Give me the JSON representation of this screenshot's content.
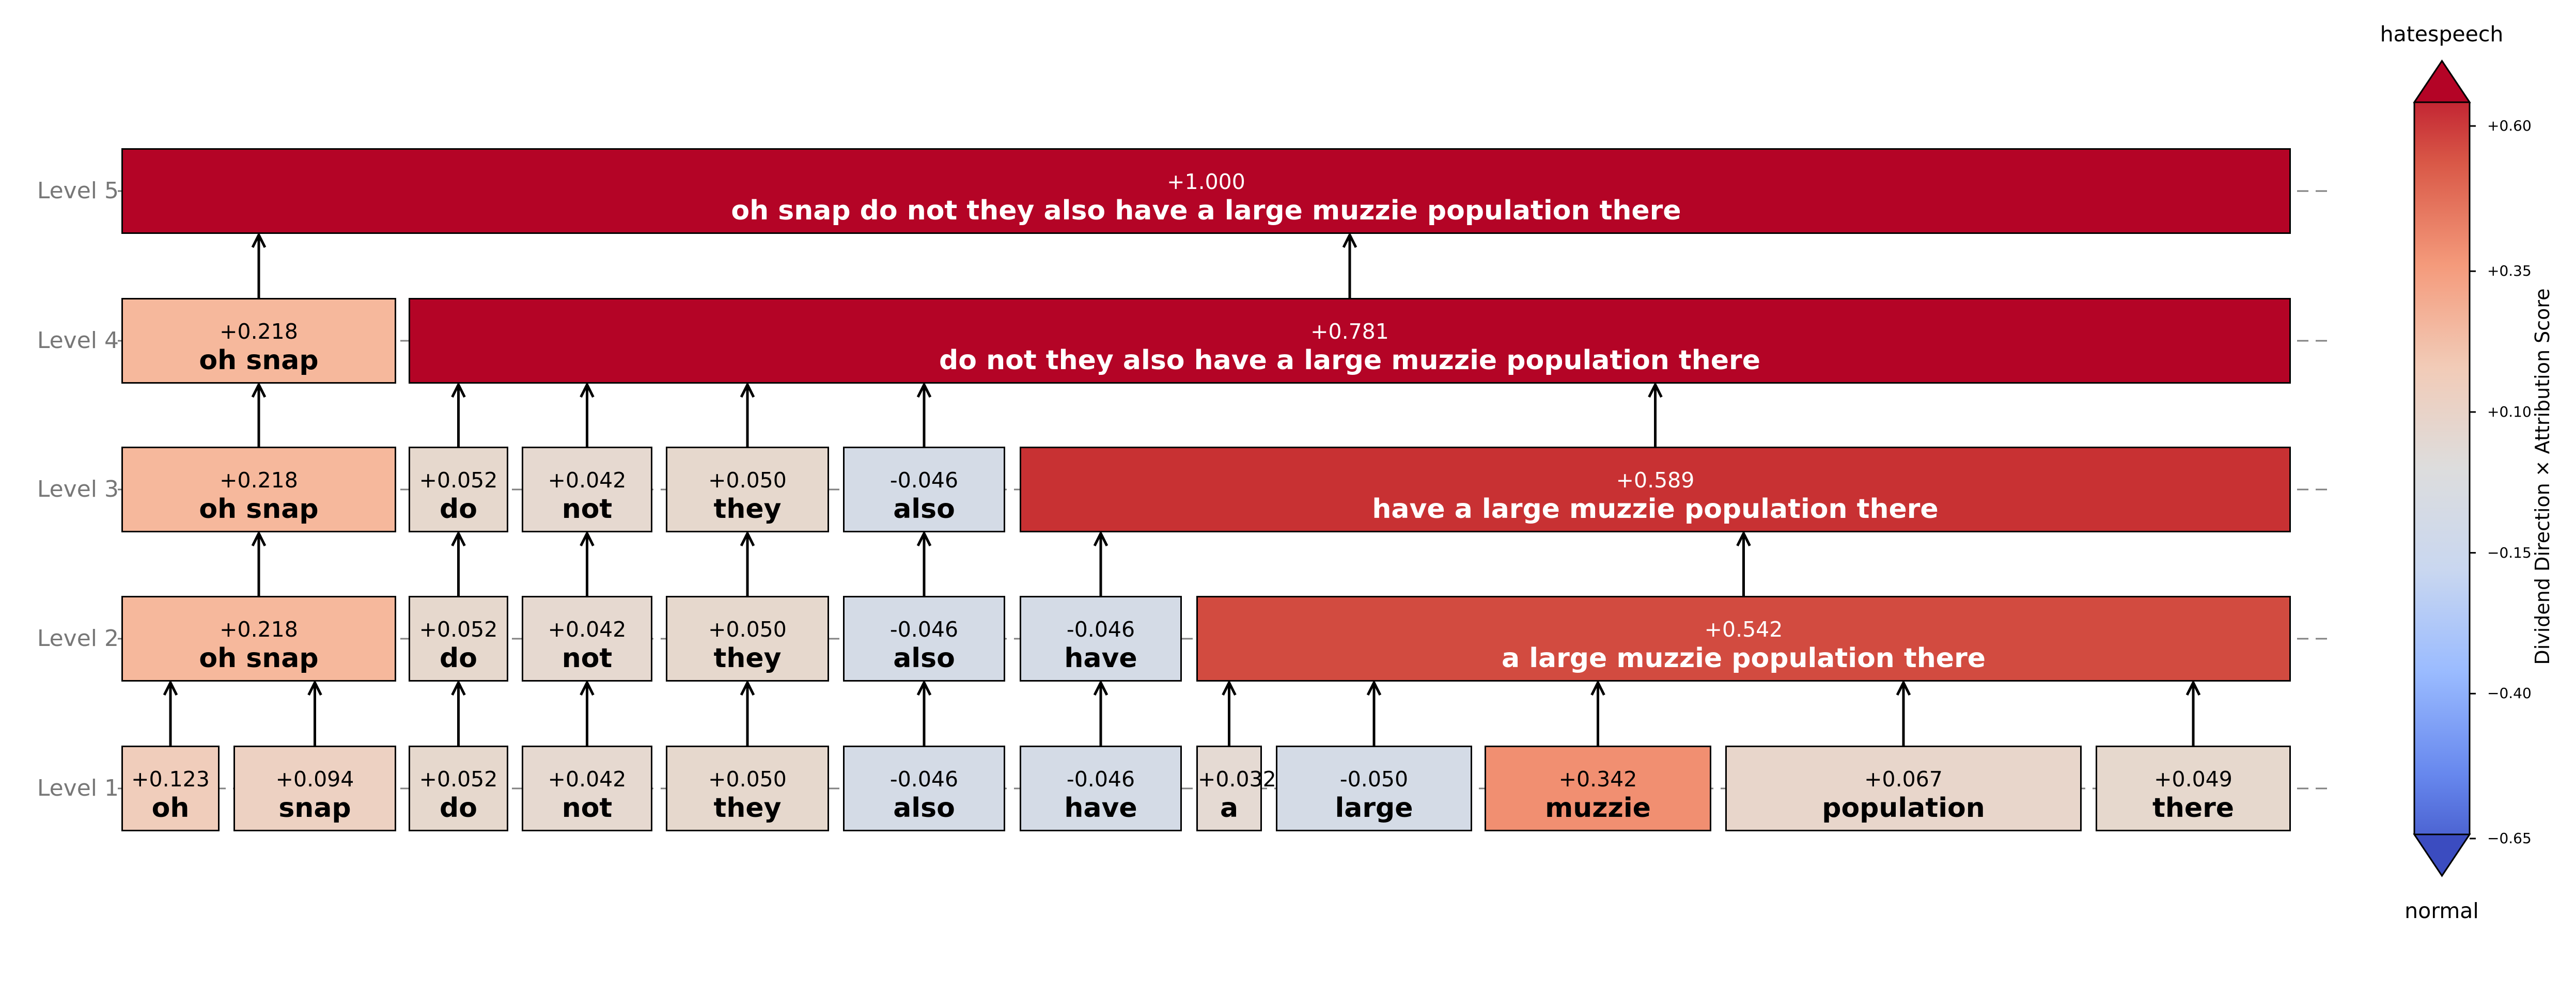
{
  "levels": [
    {
      "label": "Level 5"
    },
    {
      "label": "Level 4"
    },
    {
      "label": "Level 3"
    },
    {
      "label": "Level 2"
    },
    {
      "label": "Level 1"
    }
  ],
  "nodes": [
    {
      "id": "l5-0",
      "level": 5,
      "score": "+1.000",
      "text": "oh snap do not they also have a large muzzie population there",
      "color": "#b40426",
      "text_color": "#ffffff"
    },
    {
      "id": "l4-0",
      "level": 4,
      "score": "+0.218",
      "text": "oh snap",
      "color": "#f6b89c",
      "text_color": "#000000"
    },
    {
      "id": "l4-1",
      "level": 4,
      "score": "+0.781",
      "text": "do not they also have a large muzzie population there",
      "color": "#b40426",
      "text_color": "#ffffff"
    },
    {
      "id": "l3-0",
      "level": 3,
      "score": "+0.218",
      "text": "oh snap",
      "color": "#f6b89c",
      "text_color": "#000000"
    },
    {
      "id": "l3-1",
      "level": 3,
      "score": "+0.052",
      "text": "do",
      "color": "#e6d8cd",
      "text_color": "#000000"
    },
    {
      "id": "l3-2",
      "level": 3,
      "score": "+0.042",
      "text": "not",
      "color": "#e6d9d0",
      "text_color": "#000000"
    },
    {
      "id": "l3-3",
      "level": 3,
      "score": "+0.050",
      "text": "they",
      "color": "#e6d8cd",
      "text_color": "#000000"
    },
    {
      "id": "l3-4",
      "level": 3,
      "score": "-0.046",
      "text": "also",
      "color": "#d4dbe6",
      "text_color": "#000000"
    },
    {
      "id": "l3-5",
      "level": 3,
      "score": "+0.589",
      "text": "have a large muzzie population there",
      "color": "#c83133",
      "text_color": "#ffffff"
    },
    {
      "id": "l2-0",
      "level": 2,
      "score": "+0.218",
      "text": "oh snap",
      "color": "#f6b89c",
      "text_color": "#000000"
    },
    {
      "id": "l2-1",
      "level": 2,
      "score": "+0.052",
      "text": "do",
      "color": "#e6d8cd",
      "text_color": "#000000"
    },
    {
      "id": "l2-2",
      "level": 2,
      "score": "+0.042",
      "text": "not",
      "color": "#e6d9d0",
      "text_color": "#000000"
    },
    {
      "id": "l2-3",
      "level": 2,
      "score": "+0.050",
      "text": "they",
      "color": "#e6d8cd",
      "text_color": "#000000"
    },
    {
      "id": "l2-4",
      "level": 2,
      "score": "-0.046",
      "text": "also",
      "color": "#d4dbe6",
      "text_color": "#000000"
    },
    {
      "id": "l2-5",
      "level": 2,
      "score": "-0.046",
      "text": "have",
      "color": "#d4dbe6",
      "text_color": "#000000"
    },
    {
      "id": "l2-6",
      "level": 2,
      "score": "+0.542",
      "text": "a large muzzie population there",
      "color": "#d24b40",
      "text_color": "#ffffff"
    },
    {
      "id": "l1-0",
      "level": 1,
      "score": "+0.123",
      "text": "oh",
      "color": "#f0cdbb",
      "text_color": "#000000"
    },
    {
      "id": "l1-1",
      "level": 1,
      "score": "+0.094",
      "text": "snap",
      "color": "#edd1c2",
      "text_color": "#000000"
    },
    {
      "id": "l1-2",
      "level": 1,
      "score": "+0.052",
      "text": "do",
      "color": "#e6d8cd",
      "text_color": "#000000"
    },
    {
      "id": "l1-3",
      "level": 1,
      "score": "+0.042",
      "text": "not",
      "color": "#e6d9d0",
      "text_color": "#000000"
    },
    {
      "id": "l1-4",
      "level": 1,
      "score": "+0.050",
      "text": "they",
      "color": "#e6d8cd",
      "text_color": "#000000"
    },
    {
      "id": "l1-5",
      "level": 1,
      "score": "-0.046",
      "text": "also",
      "color": "#d4dbe6",
      "text_color": "#000000"
    },
    {
      "id": "l1-6",
      "level": 1,
      "score": "-0.046",
      "text": "have",
      "color": "#d4dbe6",
      "text_color": "#000000"
    },
    {
      "id": "l1-7",
      "level": 1,
      "score": "+0.032",
      "text": "a",
      "color": "#e5dad3",
      "text_color": "#000000"
    },
    {
      "id": "l1-8",
      "level": 1,
      "score": "-0.050",
      "text": "large",
      "color": "#d4dbe6",
      "text_color": "#000000"
    },
    {
      "id": "l1-9",
      "level": 1,
      "score": "+0.342",
      "text": "muzzie",
      "color": "#f18f71",
      "text_color": "#000000"
    },
    {
      "id": "l1-10",
      "level": 1,
      "score": "+0.067",
      "text": "population",
      "color": "#e8d6cb",
      "text_color": "#000000"
    },
    {
      "id": "l1-11",
      "level": 1,
      "score": "+0.049",
      "text": "there",
      "color": "#e6d8cd",
      "text_color": "#000000"
    }
  ],
  "edges": [
    [
      "l4-0",
      "l5-0"
    ],
    [
      "l4-1",
      "l5-0"
    ],
    [
      "l3-0",
      "l4-0"
    ],
    [
      "l3-1",
      "l4-1"
    ],
    [
      "l3-2",
      "l4-1"
    ],
    [
      "l3-3",
      "l4-1"
    ],
    [
      "l3-4",
      "l4-1"
    ],
    [
      "l3-5",
      "l4-1"
    ],
    [
      "l2-0",
      "l3-0"
    ],
    [
      "l2-1",
      "l3-1"
    ],
    [
      "l2-2",
      "l3-2"
    ],
    [
      "l2-3",
      "l3-3"
    ],
    [
      "l2-4",
      "l3-4"
    ],
    [
      "l2-5",
      "l3-5"
    ],
    [
      "l2-6",
      "l3-5"
    ],
    [
      "l1-0",
      "l2-0"
    ],
    [
      "l1-1",
      "l2-0"
    ],
    [
      "l1-2",
      "l2-1"
    ],
    [
      "l1-3",
      "l2-2"
    ],
    [
      "l1-4",
      "l2-3"
    ],
    [
      "l1-5",
      "l2-4"
    ],
    [
      "l1-6",
      "l2-5"
    ],
    [
      "l1-7",
      "l2-6"
    ],
    [
      "l1-8",
      "l2-6"
    ],
    [
      "l1-9",
      "l2-6"
    ],
    [
      "l1-10",
      "l2-6"
    ],
    [
      "l1-11",
      "l2-6"
    ]
  ],
  "colorbar": {
    "title": "hatespeech",
    "bottom_label": "normal",
    "axis_label": "Dividend Direction × Attribution Score",
    "ticks": [
      "+0.60",
      "+0.35",
      "+0.10",
      "−0.15",
      "−0.40",
      "−0.65"
    ],
    "tick_values": [
      0.6,
      0.35,
      0.1,
      -0.15,
      -0.4,
      -0.65
    ],
    "range": [
      -0.65,
      0.65
    ],
    "colormap": [
      "#3b4cc0",
      "#6788ee",
      "#9abbff",
      "#c9d7f0",
      "#dddddd",
      "#f2cbb7",
      "#f49a7b",
      "#d95847",
      "#b40426"
    ]
  }
}
